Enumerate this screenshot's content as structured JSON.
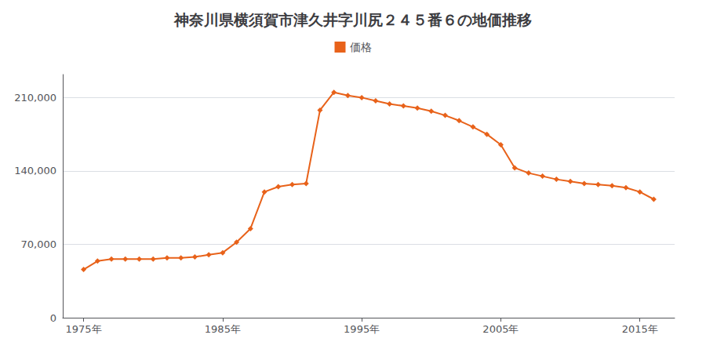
{
  "chart_data": {
    "type": "line",
    "title": "神奈川県横須賀市津久井字川尻２４５番６の地価推移",
    "series": [
      {
        "name": "価格",
        "color": "#E8621A",
        "marker": "diamond",
        "values": [
          46000,
          54000,
          56000,
          56000,
          56000,
          56000,
          57000,
          57000,
          58000,
          60000,
          62000,
          72000,
          85000,
          120000,
          125000,
          127000,
          128000,
          198000,
          215000,
          212000,
          210000,
          207000,
          204000,
          202000,
          200000,
          197000,
          193000,
          188000,
          182000,
          175000,
          165000,
          143000,
          138000,
          135000,
          132000,
          130000,
          128000,
          127000,
          126000,
          124000,
          120000,
          113000
        ]
      }
    ],
    "x": [
      1975,
      1976,
      1977,
      1978,
      1979,
      1980,
      1981,
      1982,
      1983,
      1984,
      1985,
      1986,
      1987,
      1988,
      1989,
      1990,
      1991,
      1992,
      1993,
      1994,
      1995,
      1996,
      1997,
      1998,
      1999,
      2000,
      2001,
      2002,
      2003,
      2004,
      2005,
      2006,
      2007,
      2008,
      2009,
      2010,
      2011,
      2012,
      2013,
      2014,
      2015,
      2016
    ],
    "xlim": [
      1973.5,
      2017.5
    ],
    "xticks": [
      {
        "value": 1975,
        "label": "1975年"
      },
      {
        "value": 1985,
        "label": "1985年"
      },
      {
        "value": 1995,
        "label": "1995年"
      },
      {
        "value": 2005,
        "label": "2005年"
      },
      {
        "value": 2015,
        "label": "2015年"
      }
    ],
    "ylim": [
      0,
      232000
    ],
    "yticks": [
      0,
      {
        "value": 70000,
        "label": "70,000"
      },
      {
        "value": 140000,
        "label": "140,000"
      },
      {
        "value": 210000,
        "label": "210,000"
      }
    ],
    "grid": true,
    "legend": "top"
  }
}
